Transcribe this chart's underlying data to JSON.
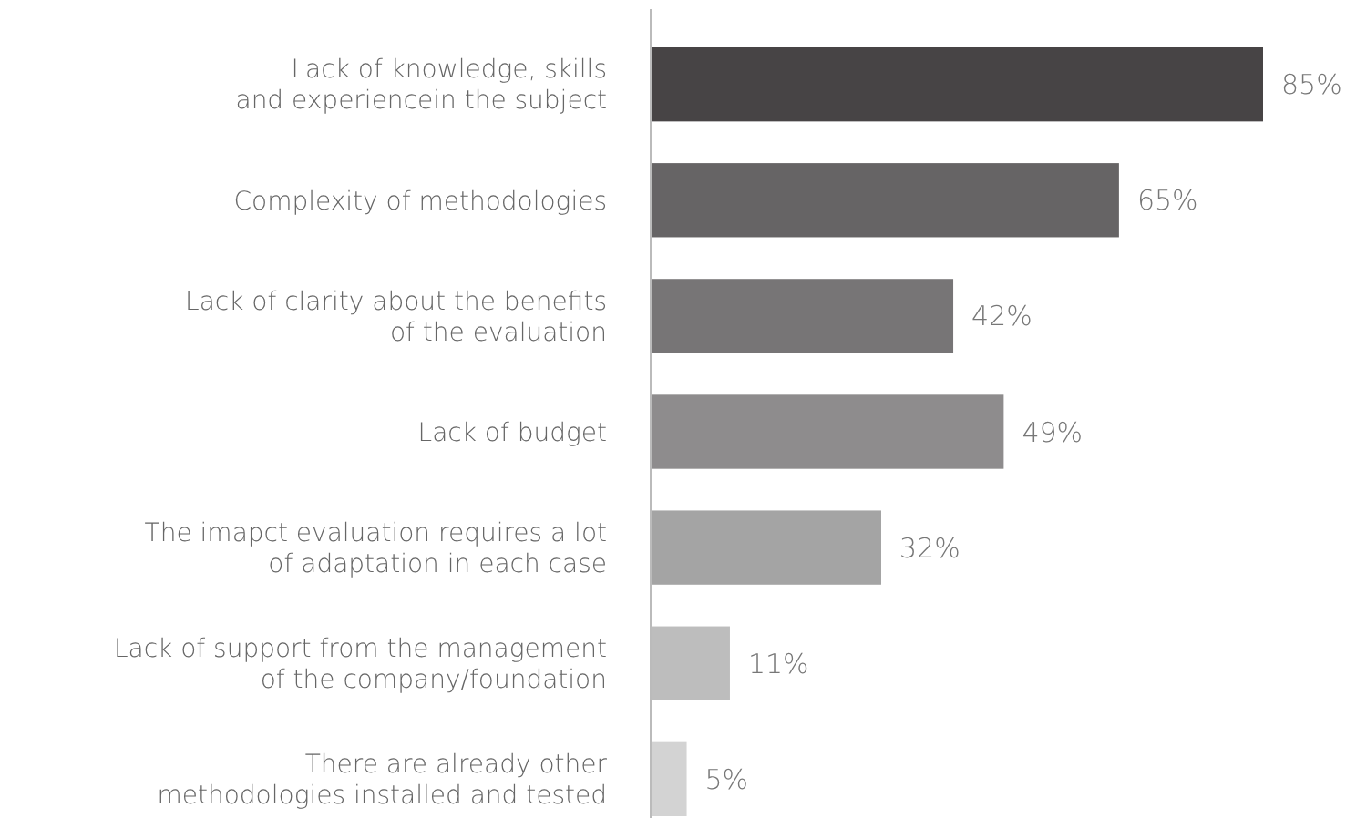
{
  "chart_data": {
    "type": "bar",
    "orientation": "horizontal",
    "categories": [
      "Lack of knowledge, skills\nand experiencein the subject",
      "Complexity of methodologies",
      "Lack of clarity about the benefits\nof the evaluation",
      "Lack of budget",
      "The imapct evaluation requires a lot\nof adaptation in each case",
      "Lack of support from the management\nof the company/foundation",
      "There are already other\nmethodologies installed and tested"
    ],
    "values": [
      85,
      65,
      42,
      49,
      32,
      11,
      5
    ],
    "value_labels": [
      "85%",
      "65%",
      "42%",
      "49%",
      "32%",
      "11%",
      "5%"
    ],
    "colors": [
      "#474445",
      "#666465",
      "#777576",
      "#8e8c8d",
      "#a4a4a4",
      "#bdbdbd",
      "#d3d3d3"
    ]
  }
}
